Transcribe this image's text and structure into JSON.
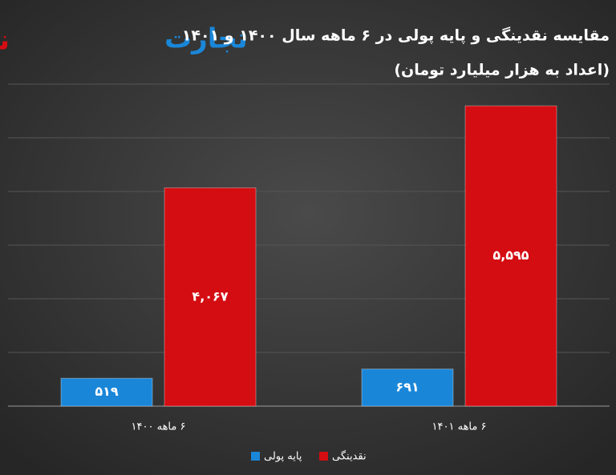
{
  "logo": [
    "تجارت",
    "نیوز"
  ],
  "chart_data": {
    "type": "bar",
    "title": "مقایسه نقدینگی و پایه پولی در ۶ ماهه سال ۱۴۰۰ و ۱۴۰۱",
    "subtitle": "(اعداد به هزار میلیارد تومان)",
    "categories": [
      "۶ ماهه ۱۴۰۰",
      "۶ ماهه ۱۴۰۱"
    ],
    "series": [
      {
        "name": "پایه پولی",
        "color": "#1a86d8",
        "values": [
          519,
          691
        ],
        "value_labels": [
          "۵۱۹",
          "۶۹۱"
        ]
      },
      {
        "name": "نقدینگی",
        "color": "#d40d12",
        "values": [
          4067,
          5595
        ],
        "value_labels": [
          "۴,۰۶۷",
          "۵,۵۹۵"
        ]
      }
    ],
    "ylim": [
      0,
      6000
    ],
    "yticks": [
      0,
      1000,
      2000,
      3000,
      4000,
      5000,
      6000
    ],
    "grid": true
  }
}
